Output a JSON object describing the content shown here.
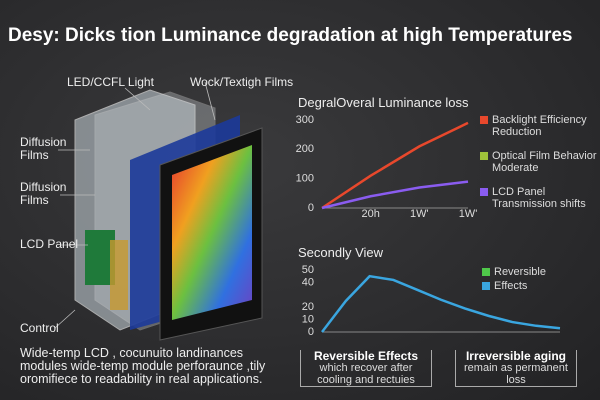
{
  "title": "Desy: Dicks tion Luminance degradation at high Temperatures",
  "labels": [
    "LED/CCFL Light",
    "Wock/Textigh Films",
    "Diffusion Films",
    "Diffusion Films",
    "LCD Panel",
    "Control"
  ],
  "paragraph": "Wide-temp LCD , cocunuito landinances modules wide-temp module perforaunce ,tily oromifiece to readability in real applications.",
  "boxes": [
    {
      "title": "Reversible Effects",
      "text": "which recover after cooling and rectuies"
    },
    {
      "title": "Irreversible aging",
      "text": "remain as permanent loss"
    }
  ],
  "chart_data": [
    {
      "type": "line",
      "title": "DegralOveral Luminance loss",
      "x": [
        0,
        1,
        2,
        3
      ],
      "xlim": [
        0,
        3
      ],
      "xticks": [
        {
          "value": 1,
          "label": "20h"
        },
        {
          "value": 2,
          "label": "1W'"
        },
        {
          "value": 3,
          "label": "1W'"
        }
      ],
      "ylim": [
        0,
        300
      ],
      "yticks": [
        0,
        100,
        200,
        300
      ],
      "series": [
        {
          "name": "Backlight Efficiency Reduction",
          "color": "#e8482c",
          "values": [
            0,
            110,
            210,
            290
          ]
        },
        {
          "name": "LCD Panel Transmission shifts",
          "color": "#8a5cf0",
          "values": [
            0,
            40,
            70,
            90
          ]
        }
      ],
      "annotations": [
        {
          "text": "Optical Film Behavior Moderate",
          "color": "#9fc23a"
        }
      ]
    },
    {
      "type": "line",
      "title": "Secondly View",
      "x": [
        0,
        1,
        2,
        3,
        4,
        5,
        6,
        7,
        8,
        9,
        10
      ],
      "xlim": [
        0,
        10
      ],
      "ylim": [
        0,
        50
      ],
      "yticks": [
        0,
        10,
        20,
        40,
        50
      ],
      "series": [
        {
          "name": "Effects",
          "color": "#3aa6e0",
          "values": [
            0,
            25,
            45,
            42,
            34,
            26,
            19,
            13,
            8,
            5,
            3
          ]
        }
      ],
      "annotations": [
        {
          "text": "Reversible",
          "color": "#4fc84a"
        }
      ]
    }
  ]
}
